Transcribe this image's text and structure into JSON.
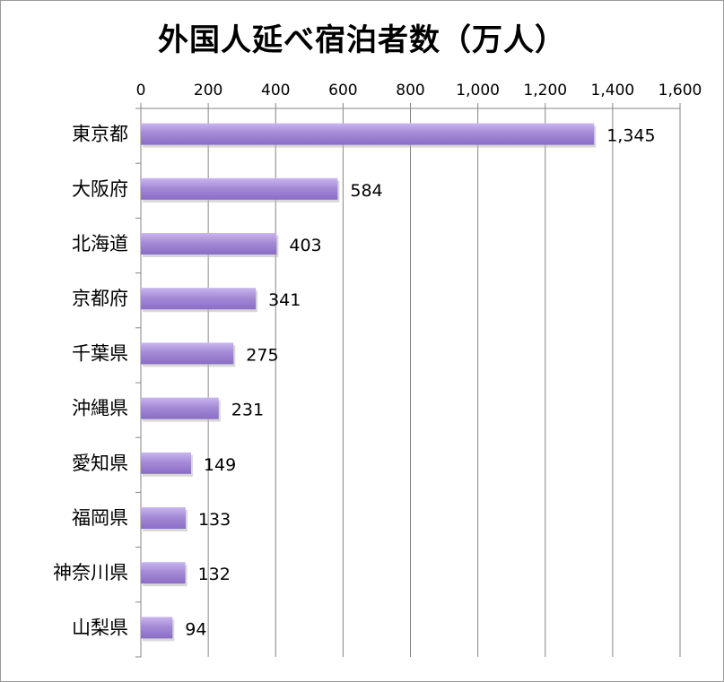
{
  "chart_data": {
    "type": "bar",
    "orientation": "horizontal",
    "title": "外国人延べ宿泊者数（万人）",
    "categories": [
      "東京都",
      "大阪府",
      "北海道",
      "京都府",
      "千葉県",
      "沖縄県",
      "愛知県",
      "福岡県",
      "神奈川県",
      "山梨県"
    ],
    "values": [
      1345,
      584,
      403,
      341,
      275,
      231,
      149,
      133,
      132,
      94
    ],
    "value_labels": [
      "1,345",
      "584",
      "403",
      "341",
      "275",
      "231",
      "149",
      "133",
      "132",
      "94"
    ],
    "xlim": [
      0,
      1600
    ],
    "x_ticks": [
      0,
      200,
      400,
      600,
      800,
      1000,
      1200,
      1400,
      1600
    ],
    "x_tick_labels": [
      "0",
      "200",
      "400",
      "600",
      "800",
      "1,000",
      "1,200",
      "1,400",
      "1,600"
    ],
    "axis_position": "top",
    "grid": true,
    "legend": "none",
    "bar_color": "#a58bd6",
    "bar_color_light": "#c9b6ee",
    "bar_color_dark": "#8a6cc6"
  }
}
